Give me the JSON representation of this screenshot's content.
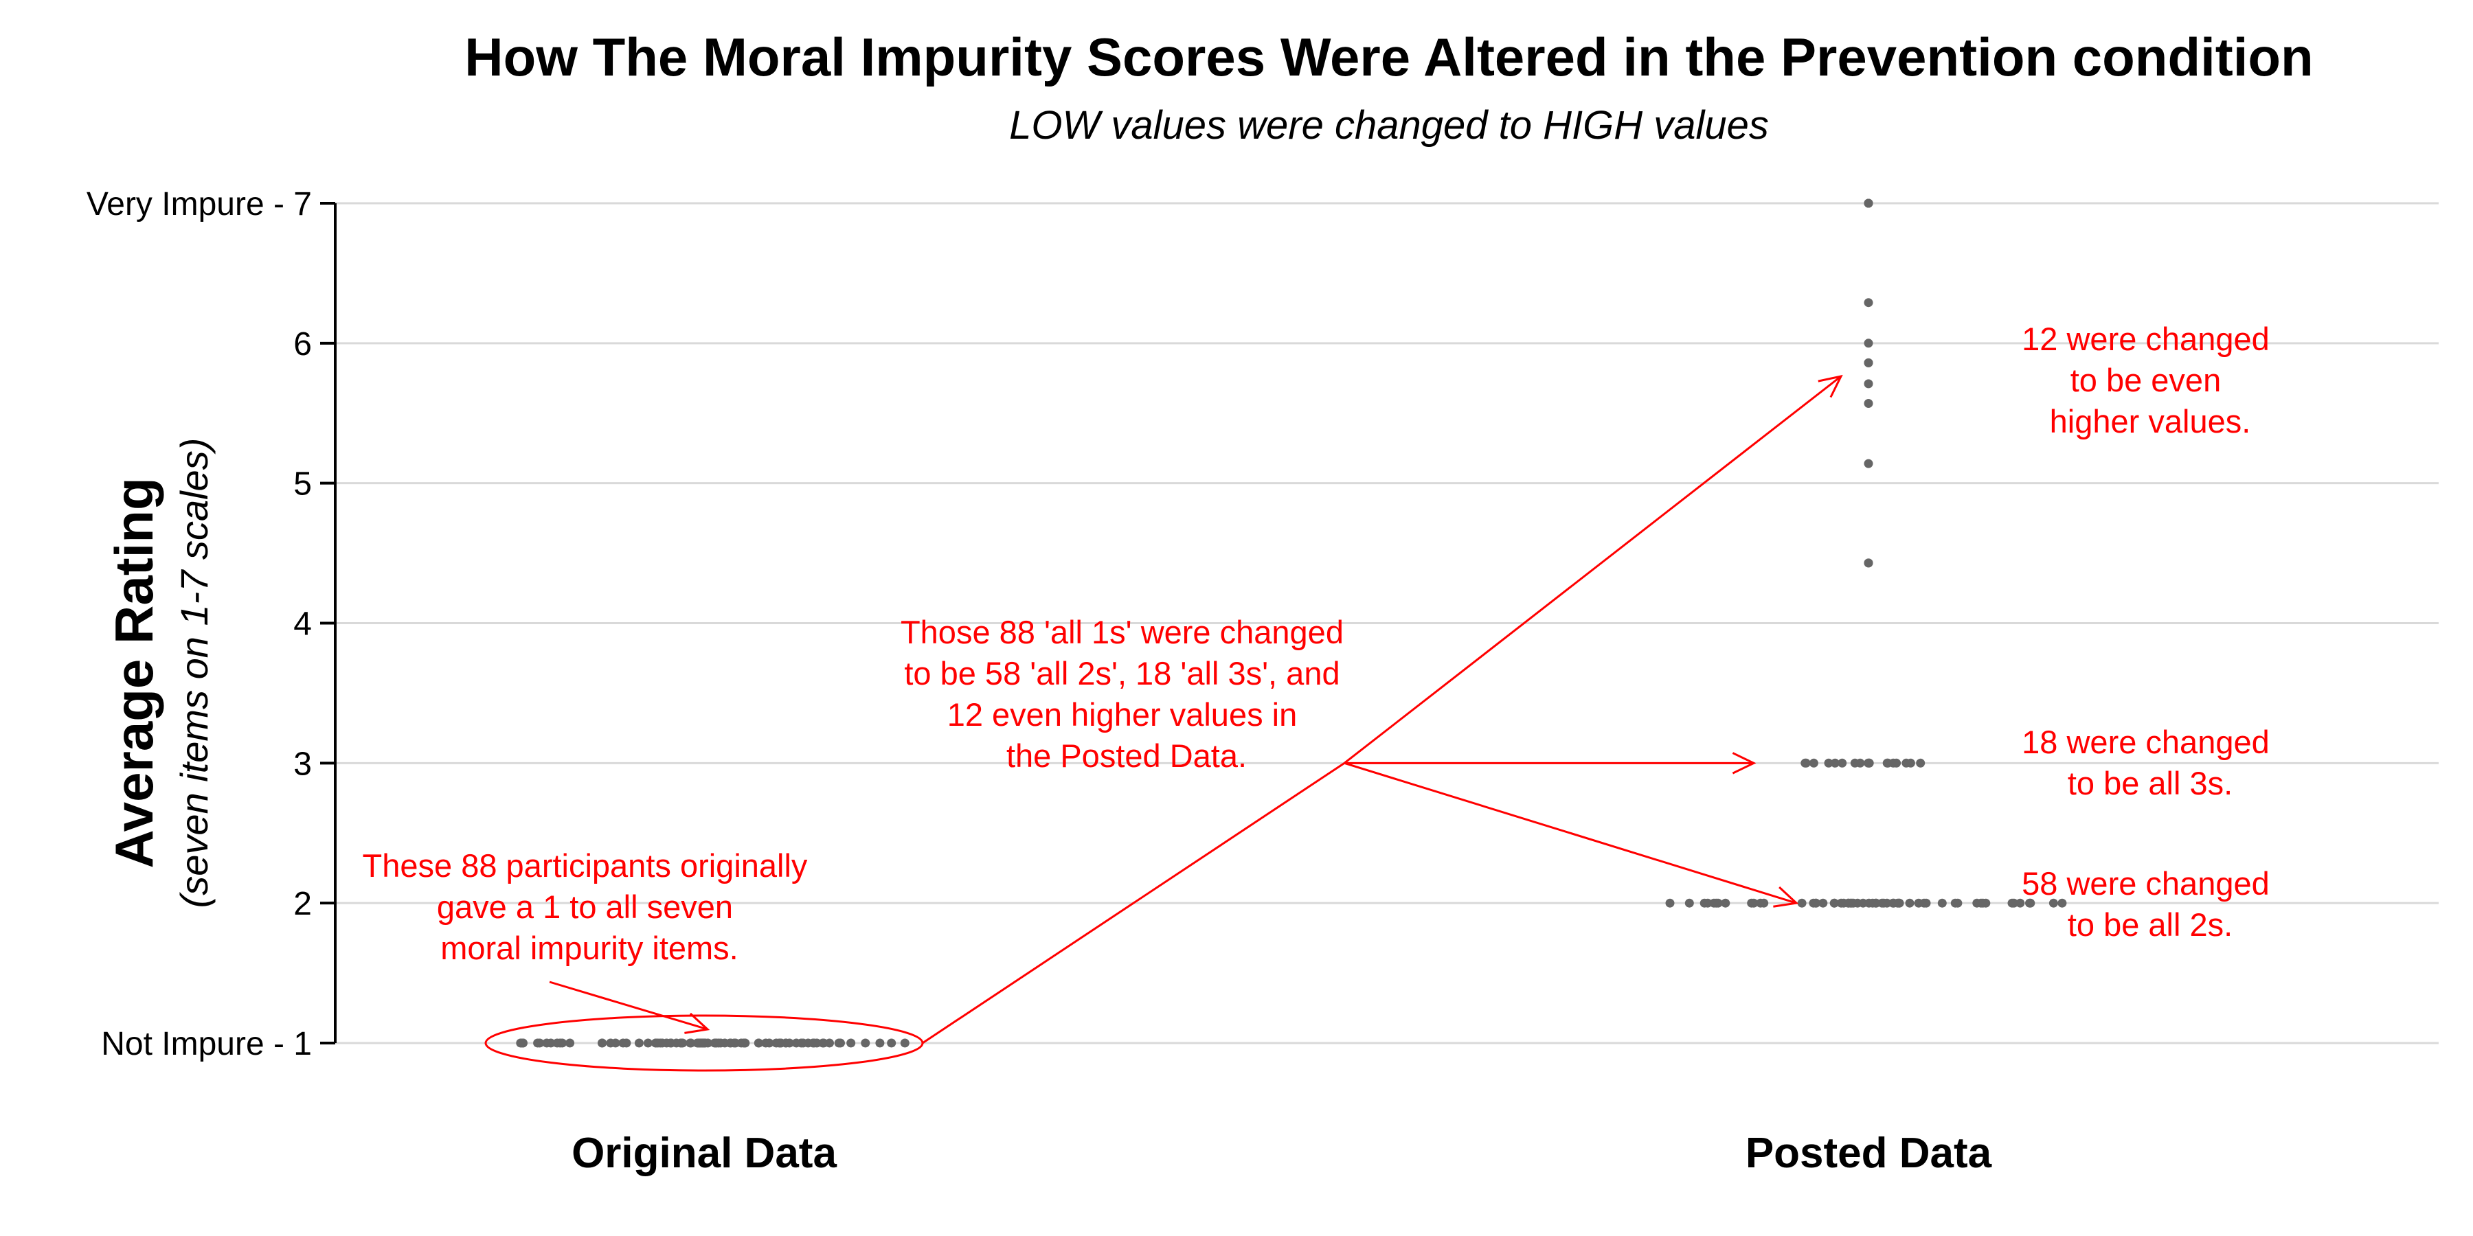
{
  "chart_data": {
    "type": "scatter",
    "title": "How The Moral Impurity Scores Were Altered in the Prevention condition",
    "subtitle": "LOW values were changed to HIGH values",
    "ylabel": "Average Rating",
    "ylabel_sub": "(seven items on 1-7 scales)",
    "ylim": [
      1,
      7
    ],
    "grid": true,
    "y_ticks": [
      {
        "value": 7,
        "label": "Very Impure - 7"
      },
      {
        "value": 6,
        "label": "6"
      },
      {
        "value": 5,
        "label": "5"
      },
      {
        "value": 4,
        "label": "4"
      },
      {
        "value": 3,
        "label": "3"
      },
      {
        "value": 2,
        "label": "2"
      },
      {
        "value": 1,
        "label": "Not Impure - 1"
      }
    ],
    "categories": [
      "Original Data",
      "Posted Data"
    ],
    "series": [
      {
        "category": "Original Data",
        "points": [
          {
            "y": 1,
            "n": 88
          }
        ]
      },
      {
        "category": "Posted Data",
        "points": [
          {
            "y": 2,
            "n": 58
          },
          {
            "y": 3,
            "n": 18
          },
          {
            "y": 4.43,
            "n": 2
          },
          {
            "y": 5.14,
            "n": 1
          },
          {
            "y": 5.57,
            "n": 1
          },
          {
            "y": 5.71,
            "n": 1
          },
          {
            "y": 5.86,
            "n": 2
          },
          {
            "y": 6,
            "n": 1
          },
          {
            "y": 6.29,
            "n": 1
          },
          {
            "y": 7,
            "n": 3
          }
        ]
      }
    ],
    "annotations": {
      "original": [
        "These 88 participants originally",
        "gave a 1 to all seven",
        "moral impurity items."
      ],
      "middle": [
        "Those 88 'all 1s' were changed",
        "to be 58 'all 2s', 18 'all 3s', and",
        "12 even higher values in",
        "the Posted Data."
      ],
      "higher": [
        "12 were changed",
        "to be even",
        "higher values."
      ],
      "threes": [
        "18 were changed",
        "to be all 3s."
      ],
      "twos": [
        "58 were changed",
        "to be all 2s."
      ]
    },
    "colors": {
      "point": "#666666",
      "annotation": "#ff0000",
      "grid": "#d9d9d9",
      "axis": "#000000"
    }
  }
}
